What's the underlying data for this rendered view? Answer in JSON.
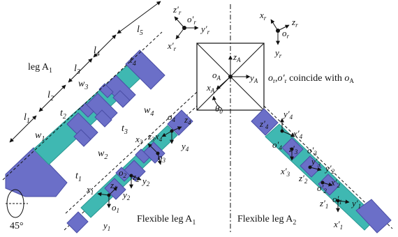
{
  "diagram": {
    "leg_label": "leg A",
    "leg_label_sub": "1",
    "flexible_leg_a1": "Flexible leg A",
    "flexible_leg_a1_sub": "1",
    "flexible_leg_a2": "Flexible leg A",
    "flexible_leg_a2_sub": "2",
    "angle_label": "45°",
    "theta_label": "θ",
    "theta_sub": "0",
    "coincide_note": "coincide with",
    "dims": {
      "l1": "l",
      "l1s": "1",
      "l2": "l",
      "l2s": "2",
      "l3": "l",
      "l3s": "3",
      "l4": "l",
      "l4s": "4",
      "l5": "l",
      "l5s": "5",
      "w1": "w",
      "w1s": "1",
      "w2": "w",
      "w2s": "2",
      "w3": "w",
      "w3s": "3",
      "w4": "w",
      "w4s": "4",
      "t1": "t",
      "t1s": "1",
      "t2": "t",
      "t2s": "2",
      "t3": "t",
      "t3s": "3",
      "t4": "t",
      "t4s": "4"
    }
  },
  "colors": {
    "module": "#6b6fc8",
    "module_dark": "#4a4ea6",
    "link": "#3fb8b2",
    "link_dark": "#2a9892"
  }
}
